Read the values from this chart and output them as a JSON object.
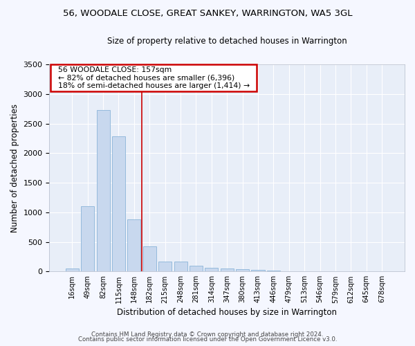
{
  "title": "56, WOODALE CLOSE, GREAT SANKEY, WARRINGTON, WA5 3GL",
  "subtitle": "Size of property relative to detached houses in Warrington",
  "xlabel": "Distribution of detached houses by size in Warrington",
  "ylabel": "Number of detached properties",
  "categories": [
    "16sqm",
    "49sqm",
    "82sqm",
    "115sqm",
    "148sqm",
    "182sqm",
    "215sqm",
    "248sqm",
    "281sqm",
    "314sqm",
    "347sqm",
    "380sqm",
    "413sqm",
    "446sqm",
    "479sqm",
    "513sqm",
    "546sqm",
    "579sqm",
    "612sqm",
    "645sqm",
    "678sqm"
  ],
  "values": [
    50,
    1100,
    2730,
    2290,
    880,
    430,
    170,
    170,
    95,
    65,
    50,
    35,
    25,
    20,
    5,
    0,
    0,
    0,
    0,
    0,
    0
  ],
  "bar_color": "#c8d8ee",
  "bar_edge_color": "#8ab4d8",
  "background_color": "#e8eef8",
  "grid_color": "#ffffff",
  "ylim": [
    0,
    3500
  ],
  "annotation_text1": "56 WOODALE CLOSE: 157sqm",
  "annotation_text2": "← 82% of detached houses are smaller (6,396)",
  "annotation_text3": "18% of semi-detached houses are larger (1,414) →",
  "annotation_box_color": "#ffffff",
  "annotation_box_edge_color": "#cc0000",
  "vline_color": "#cc0000",
  "footer1": "Contains HM Land Registry data © Crown copyright and database right 2024.",
  "footer2": "Contains public sector information licensed under the Open Government Licence v3.0.",
  "fig_facecolor": "#f5f7ff"
}
